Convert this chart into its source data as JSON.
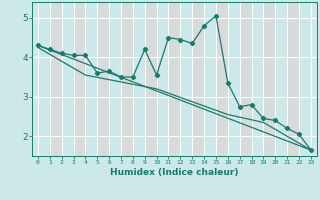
{
  "xlabel": "Humidex (Indice chaleur)",
  "background_color": "#cce8e8",
  "grid_color": "#ffffff",
  "line_color": "#1a7a6e",
  "xlim": [
    -0.5,
    23.5
  ],
  "ylim": [
    1.5,
    5.4
  ],
  "yticks": [
    2,
    3,
    4,
    5
  ],
  "xticks": [
    0,
    1,
    2,
    3,
    4,
    5,
    6,
    7,
    8,
    9,
    10,
    11,
    12,
    13,
    14,
    15,
    16,
    17,
    18,
    19,
    20,
    21,
    22,
    23
  ],
  "line1_x": [
    0,
    1,
    2,
    3,
    4,
    5,
    6,
    7,
    8,
    9,
    10,
    11,
    12,
    13,
    14,
    15,
    16,
    17,
    18,
    19,
    20,
    21,
    22,
    23
  ],
  "line1_y": [
    4.3,
    4.2,
    4.1,
    4.05,
    4.05,
    3.6,
    3.65,
    3.5,
    3.5,
    4.2,
    3.55,
    4.5,
    4.45,
    4.35,
    4.8,
    5.05,
    3.35,
    2.75,
    2.8,
    2.45,
    2.4,
    2.2,
    2.05,
    1.65
  ],
  "line2_x": [
    0,
    23
  ],
  "line2_y": [
    4.3,
    1.65
  ],
  "line3_x": [
    0,
    4,
    10,
    16,
    19,
    23
  ],
  "line3_y": [
    4.25,
    3.55,
    3.2,
    2.55,
    2.35,
    1.65
  ]
}
